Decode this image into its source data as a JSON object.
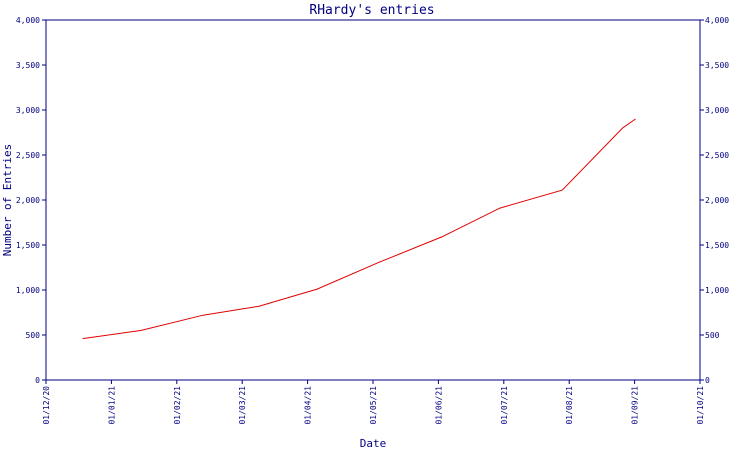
{
  "chart_data": {
    "type": "line",
    "title": "RHardy's entries",
    "xlabel": "Date",
    "ylabel": "Number of Entries",
    "x_ticks": [
      "01/12/20",
      "01/01/21",
      "01/02/21",
      "01/03/21",
      "01/04/21",
      "01/05/21",
      "01/06/21",
      "01/07/21",
      "01/08/21",
      "01/09/21",
      "01/10/21"
    ],
    "y_ticks": [
      "0",
      "500",
      "1,000",
      "1,500",
      "2,000",
      "2,500",
      "3,000",
      "3,500",
      "4,000"
    ],
    "xlim": [
      "2020-12-01",
      "2021-10-01"
    ],
    "ylim": [
      0,
      4000
    ],
    "grid": false,
    "colors": {
      "axis": "#000080",
      "series": "#e00000"
    },
    "series": [
      {
        "points": [
          [
            "2020-12-18",
            460
          ],
          [
            "2021-01-14",
            550
          ],
          [
            "2021-02-12",
            720
          ],
          [
            "2021-03-10",
            820
          ],
          [
            "2021-04-06",
            1010
          ],
          [
            "2021-05-05",
            1310
          ],
          [
            "2021-06-03",
            1590
          ],
          [
            "2021-06-30",
            1910
          ],
          [
            "2021-07-29",
            2110
          ],
          [
            "2021-08-26",
            2800
          ],
          [
            "2021-09-01",
            2900
          ]
        ]
      }
    ]
  }
}
